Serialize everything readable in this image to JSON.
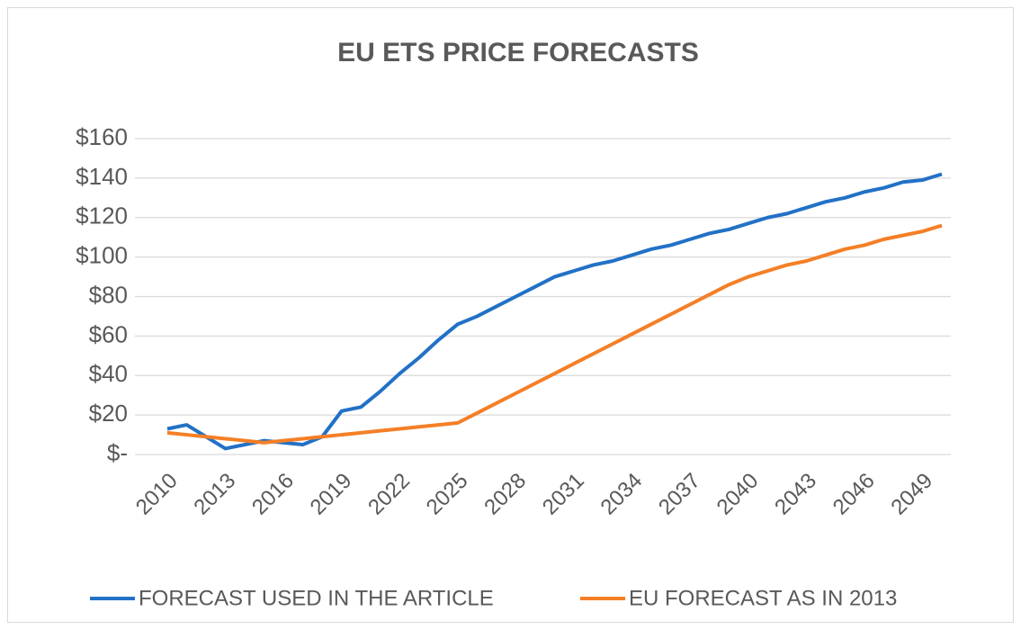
{
  "chart_data": {
    "type": "line",
    "title": "EU ETS PRICE FORECASTS",
    "categories": [
      "2010",
      null,
      null,
      "2013",
      null,
      null,
      "2016",
      null,
      null,
      "2019",
      null,
      null,
      "2022",
      null,
      null,
      "2025",
      null,
      null,
      "2028",
      null,
      null,
      "2031",
      null,
      null,
      "2034",
      null,
      null,
      "2037",
      null,
      null,
      "2040",
      null,
      null,
      "2043",
      null,
      null,
      "2046",
      null,
      null,
      "2049",
      null
    ],
    "series": [
      {
        "name": "FORECAST USED IN THE ARTICLE",
        "color": "#2271c6",
        "values": [
          13,
          15,
          9,
          3,
          5,
          7,
          6,
          5,
          9,
          22,
          24,
          32,
          41,
          49,
          58,
          66,
          70,
          75,
          80,
          85,
          90,
          93,
          96,
          98,
          101,
          104,
          106,
          109,
          112,
          114,
          117,
          120,
          122,
          125,
          128,
          130,
          133,
          135,
          138,
          139,
          142
        ]
      },
      {
        "name": "EU FORECAST AS IN 2013",
        "color": "#f47f27",
        "values": [
          11,
          10,
          9,
          8,
          7,
          6,
          7,
          8,
          9,
          10,
          11,
          12,
          13,
          14,
          15,
          16,
          21,
          26,
          31,
          36,
          41,
          46,
          51,
          56,
          61,
          66,
          71,
          76,
          81,
          86,
          90,
          93,
          96,
          98,
          101,
          104,
          106,
          109,
          111,
          113,
          116
        ]
      }
    ],
    "ylim": [
      0,
      160
    ],
    "yticks": [
      {
        "value": 0,
        "label": "$-"
      },
      {
        "value": 20,
        "label": "$20"
      },
      {
        "value": 40,
        "label": "$40"
      },
      {
        "value": 60,
        "label": "$60"
      },
      {
        "value": 80,
        "label": "$80"
      },
      {
        "value": 100,
        "label": "$100"
      },
      {
        "value": 120,
        "label": "$120"
      },
      {
        "value": 140,
        "label": "$140"
      },
      {
        "value": 160,
        "label": "$160"
      }
    ],
    "grid": true,
    "legend": "bottom"
  }
}
